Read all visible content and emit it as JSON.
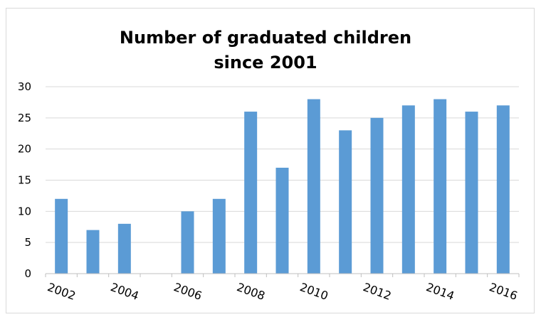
{
  "chart_data": {
    "type": "bar",
    "title": "Number of graduated children",
    "subtitle": "since 2001",
    "xlabel": "",
    "ylabel": "",
    "categories": [
      "2002",
      "2003",
      "2004",
      "2005",
      "2006",
      "2007",
      "2008",
      "2009",
      "2010",
      "2011",
      "2012",
      "2013",
      "2014",
      "2015",
      "2016"
    ],
    "values": [
      12,
      7,
      8,
      0,
      10,
      12,
      26,
      17,
      28,
      23,
      25,
      27,
      28,
      26,
      27
    ],
    "x_tick_labels": [
      "2002",
      "2004",
      "2006",
      "2008",
      "2010",
      "2012",
      "2014",
      "2016"
    ],
    "y_ticks": [
      "0",
      "5",
      "10",
      "15",
      "20",
      "25",
      "30"
    ],
    "ylim": [
      0,
      30
    ],
    "grid": true,
    "legend": "none",
    "bar_color": "#5B9BD5",
    "grid_color": "#d9d9d9"
  }
}
